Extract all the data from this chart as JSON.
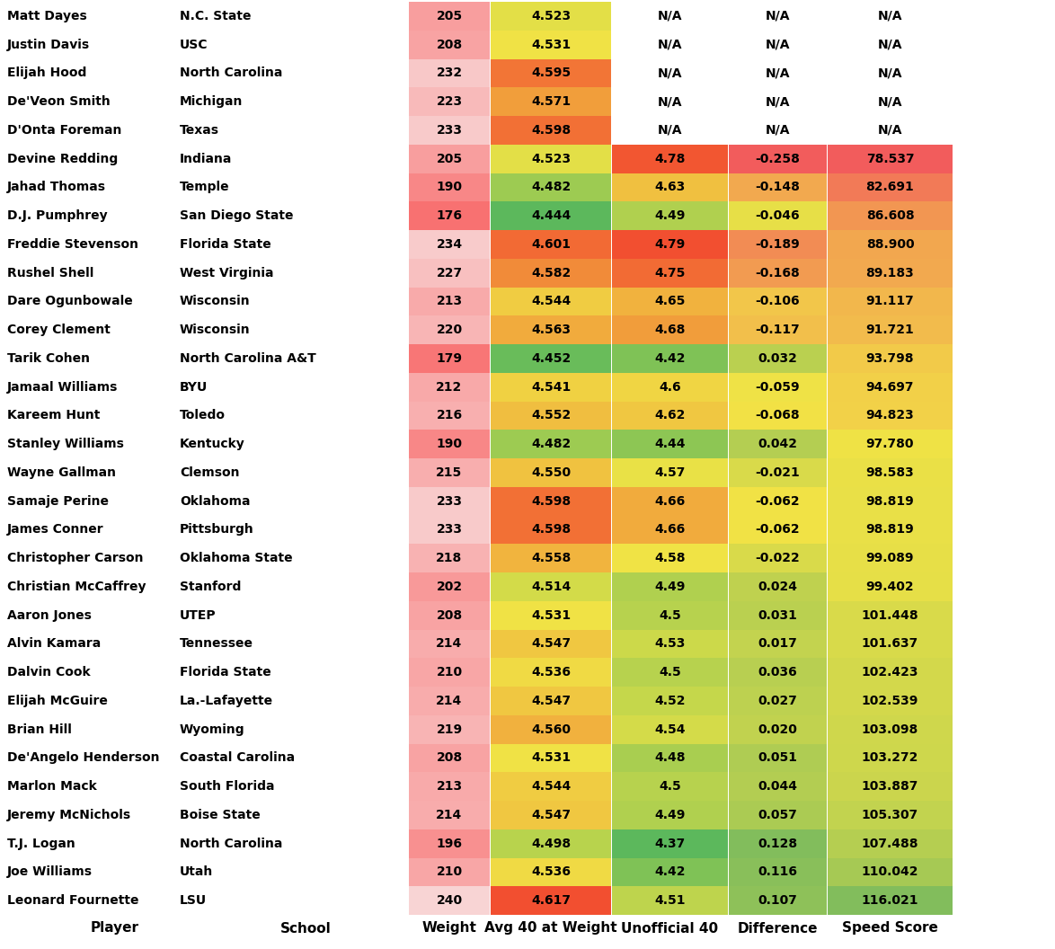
{
  "players": [
    "Leonard Fournette",
    "Joe Williams",
    "T.J. Logan",
    "Jeremy McNichols",
    "Marlon Mack",
    "De'Angelo Henderson",
    "Brian Hill",
    "Elijah McGuire",
    "Dalvin Cook",
    "Alvin Kamara",
    "Aaron Jones",
    "Christian McCaffrey",
    "Christopher Carson",
    "James Conner",
    "Samaje Perine",
    "Wayne Gallman",
    "Stanley Williams",
    "Kareem Hunt",
    "Jamaal Williams",
    "Tarik Cohen",
    "Corey Clement",
    "Dare Ogunbowale",
    "Rushel Shell",
    "Freddie Stevenson",
    "D.J. Pumphrey",
    "Jahad Thomas",
    "Devine Redding",
    "D'Onta Foreman",
    "De'Veon Smith",
    "Elijah Hood",
    "Justin Davis",
    "Matt Dayes"
  ],
  "schools": [
    "LSU",
    "Utah",
    "North Carolina",
    "Boise State",
    "South Florida",
    "Coastal Carolina",
    "Wyoming",
    "La.-Lafayette",
    "Florida State",
    "Tennessee",
    "UTEP",
    "Stanford",
    "Oklahoma State",
    "Pittsburgh",
    "Oklahoma",
    "Clemson",
    "Kentucky",
    "Toledo",
    "BYU",
    "North Carolina A&T",
    "Wisconsin",
    "Wisconsin",
    "West Virginia",
    "Florida State",
    "San Diego State",
    "Temple",
    "Indiana",
    "Texas",
    "Michigan",
    "North Carolina",
    "USC",
    "N.C. State"
  ],
  "weights": [
    240,
    210,
    196,
    214,
    213,
    208,
    219,
    214,
    210,
    214,
    208,
    202,
    218,
    233,
    233,
    215,
    190,
    216,
    212,
    179,
    220,
    213,
    227,
    234,
    176,
    190,
    205,
    233,
    223,
    232,
    208,
    205
  ],
  "avg_40": [
    4.617,
    4.536,
    4.498,
    4.547,
    4.544,
    4.531,
    4.56,
    4.547,
    4.536,
    4.547,
    4.531,
    4.514,
    4.558,
    4.598,
    4.598,
    4.55,
    4.482,
    4.552,
    4.541,
    4.452,
    4.563,
    4.544,
    4.582,
    4.601,
    4.444,
    4.482,
    4.523,
    4.598,
    4.571,
    4.595,
    4.531,
    4.523
  ],
  "unofficial_40": [
    4.51,
    4.42,
    4.37,
    4.49,
    4.5,
    4.48,
    4.54,
    4.52,
    4.5,
    4.53,
    4.5,
    4.49,
    4.58,
    4.66,
    4.66,
    4.57,
    4.44,
    4.62,
    4.6,
    4.42,
    4.68,
    4.65,
    4.75,
    4.79,
    4.49,
    4.63,
    4.78,
    null,
    null,
    null,
    null,
    null
  ],
  "difference": [
    0.107,
    0.116,
    0.128,
    0.057,
    0.044,
    0.051,
    0.02,
    0.027,
    0.036,
    0.017,
    0.031,
    0.024,
    -0.022,
    -0.062,
    -0.062,
    -0.021,
    0.042,
    -0.068,
    -0.059,
    0.032,
    -0.117,
    -0.106,
    -0.168,
    -0.189,
    -0.046,
    -0.148,
    -0.258,
    null,
    null,
    null,
    null,
    null
  ],
  "speed_score": [
    116.021,
    110.042,
    107.488,
    105.307,
    103.887,
    103.272,
    103.098,
    102.539,
    102.423,
    101.637,
    101.448,
    99.402,
    99.089,
    98.819,
    98.819,
    98.583,
    97.78,
    94.823,
    94.697,
    93.798,
    91.721,
    91.117,
    89.183,
    88.9,
    86.608,
    82.691,
    78.537,
    null,
    null,
    null,
    null,
    null
  ],
  "col_headers": [
    "Player",
    "School",
    "Weight",
    "Avg 40 at Weight",
    "Unofficial 40",
    "Difference",
    "Speed Score"
  ],
  "bg_color": "#ffffff"
}
